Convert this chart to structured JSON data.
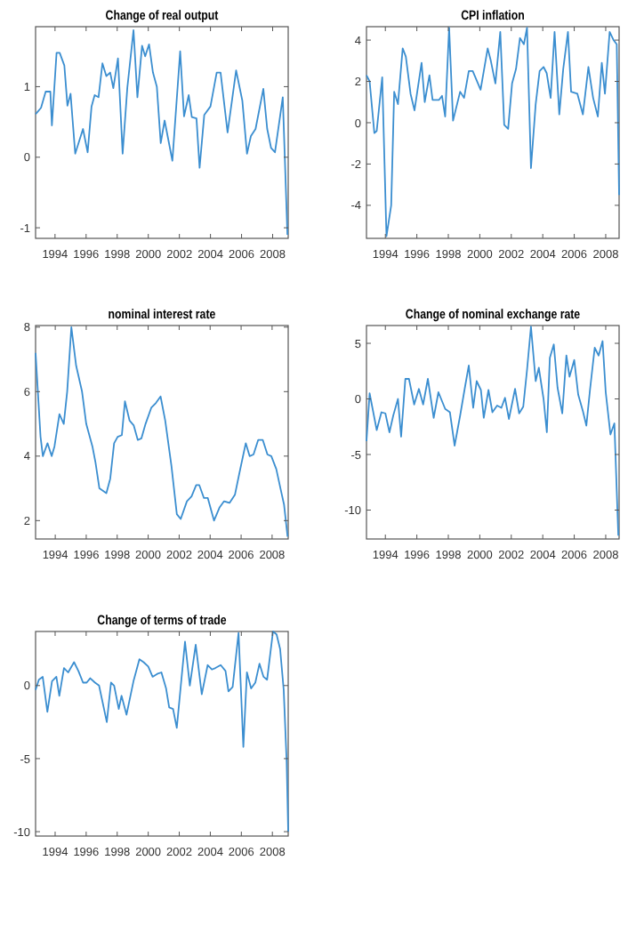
{
  "chart_data": [
    {
      "type": "line",
      "title": "Change of real output",
      "xlim": [
        1992.75,
        2009
      ],
      "ylim": [
        -1.15,
        1.85
      ],
      "xticks": [
        1994,
        1996,
        1998,
        2000,
        2002,
        2004,
        2006,
        2008
      ],
      "yticks": [
        -1,
        0,
        1
      ],
      "series": [
        {
          "color": "#3b8ed0",
          "x": [
            1992.75,
            1993.1,
            1993.4,
            1993.7,
            1993.8,
            1994.1,
            1994.3,
            1994.6,
            1994.8,
            1995.0,
            1995.3,
            1995.8,
            1996.1,
            1996.35,
            1996.55,
            1996.8,
            1997.05,
            1997.3,
            1997.55,
            1997.75,
            1998.05,
            1998.35,
            1998.65,
            1999.05,
            1999.3,
            1999.6,
            1999.8,
            2000.05,
            2000.3,
            2000.55,
            2000.8,
            2001.05,
            2001.55,
            2002.05,
            2002.3,
            2002.6,
            2002.8,
            2003.1,
            2003.3,
            2003.6,
            2004.0,
            2004.4,
            2004.65,
            2005.1,
            2005.65,
            2006.05,
            2006.35,
            2006.6,
            2006.9,
            2007.4,
            2007.65,
            2007.9,
            2008.15,
            2008.65,
            2008.95
          ],
          "values": [
            0.61,
            0.7,
            0.93,
            0.93,
            0.45,
            1.48,
            1.48,
            1.3,
            0.73,
            0.9,
            0.05,
            0.4,
            0.07,
            0.72,
            0.88,
            0.85,
            1.33,
            1.15,
            1.2,
            0.98,
            1.4,
            0.05,
            0.98,
            1.8,
            0.85,
            1.58,
            1.43,
            1.6,
            1.2,
            1.0,
            0.2,
            0.52,
            -0.05,
            1.5,
            0.58,
            0.88,
            0.57,
            0.55,
            -0.15,
            0.6,
            0.72,
            1.2,
            1.2,
            0.35,
            1.23,
            0.8,
            0.05,
            0.3,
            0.4,
            0.97,
            0.4,
            0.13,
            0.07,
            0.85,
            -1.1
          ]
        }
      ]
    },
    {
      "type": "line",
      "title": "CPI inflation",
      "xlim": [
        1992.8,
        2008.85
      ],
      "ylim": [
        -5.6,
        4.65
      ],
      "xticks": [
        1994,
        1996,
        1998,
        2000,
        2002,
        2004,
        2006,
        2008
      ],
      "yticks": [
        -4,
        -2,
        0,
        2,
        4
      ],
      "series": [
        {
          "color": "#3b8ed0",
          "x": [
            1992.8,
            1993.0,
            1993.3,
            1993.45,
            1993.8,
            1994.07,
            1994.37,
            1994.56,
            1994.8,
            1995.1,
            1995.3,
            1995.6,
            1995.85,
            1996.3,
            1996.5,
            1996.8,
            1997.0,
            1997.4,
            1997.6,
            1997.8,
            1998.05,
            1998.3,
            1998.75,
            1999.0,
            1999.3,
            1999.55,
            2000.05,
            2000.5,
            2000.7,
            2000.99,
            2001.3,
            2001.55,
            2001.8,
            2002.05,
            2002.3,
            2002.55,
            2002.8,
            2003.0,
            2003.25,
            2003.55,
            2003.8,
            2004.05,
            2004.25,
            2004.5,
            2004.75,
            2005.05,
            2005.3,
            2005.6,
            2005.8,
            2006.2,
            2006.55,
            2006.9,
            2007.2,
            2007.5,
            2007.75,
            2007.95,
            2008.25,
            2008.5,
            2008.7,
            2008.85
          ],
          "values": [
            2.3,
            2.0,
            -0.5,
            -0.4,
            2.2,
            -5.5,
            -4.0,
            1.5,
            0.9,
            3.6,
            3.2,
            1.4,
            0.6,
            2.9,
            1.0,
            2.3,
            1.1,
            1.1,
            1.3,
            0.3,
            4.6,
            0.1,
            1.5,
            1.2,
            2.5,
            2.5,
            1.6,
            3.6,
            3.0,
            1.9,
            4.4,
            -0.1,
            -0.3,
            1.9,
            2.6,
            4.1,
            3.8,
            4.6,
            -2.2,
            0.9,
            2.5,
            2.7,
            2.4,
            1.2,
            4.4,
            0.4,
            2.6,
            4.4,
            1.5,
            1.4,
            0.4,
            2.7,
            1.2,
            0.3,
            2.9,
            1.4,
            4.4,
            4.0,
            3.8,
            -3.5
          ]
        }
      ]
    },
    {
      "type": "line",
      "title": "nominal interest rate",
      "xlim": [
        1992.73,
        2009.04
      ],
      "ylim": [
        1.43,
        8.05
      ],
      "xticks": [
        1994,
        1996,
        1998,
        2000,
        2002,
        2004,
        2006,
        2008
      ],
      "yticks": [
        2,
        4,
        6,
        8
      ],
      "series": [
        {
          "color": "#3b8ed0",
          "x": [
            1992.73,
            1993.05,
            1993.2,
            1993.5,
            1993.77,
            1993.95,
            1994.27,
            1994.55,
            1994.77,
            1995.04,
            1995.35,
            1995.73,
            1996.0,
            1996.4,
            1996.6,
            1996.85,
            1997.3,
            1997.55,
            1997.8,
            1998.03,
            1998.3,
            1998.5,
            1998.8,
            1999.07,
            1999.33,
            1999.56,
            1999.83,
            2000.2,
            2000.5,
            2000.8,
            2001.1,
            2001.5,
            2001.85,
            2002.1,
            2002.5,
            2002.8,
            2003.1,
            2003.3,
            2003.6,
            2003.85,
            2004.25,
            2004.6,
            2004.9,
            2005.25,
            2005.6,
            2005.9,
            2006.3,
            2006.55,
            2006.8,
            2007.1,
            2007.4,
            2007.7,
            2007.95,
            2008.27,
            2008.54,
            2008.77,
            2009.0
          ],
          "values": [
            7.2,
            4.6,
            4.0,
            4.4,
            4.0,
            4.3,
            5.3,
            5.0,
            6.0,
            8.0,
            6.8,
            6.0,
            5.0,
            4.3,
            3.8,
            3.0,
            2.85,
            3.3,
            4.4,
            4.6,
            4.65,
            5.7,
            5.1,
            4.95,
            4.5,
            4.55,
            5.0,
            5.5,
            5.65,
            5.85,
            5.1,
            3.7,
            2.2,
            2.05,
            2.6,
            2.75,
            3.1,
            3.1,
            2.7,
            2.7,
            2.0,
            2.4,
            2.6,
            2.55,
            2.8,
            3.5,
            4.4,
            4.0,
            4.05,
            4.5,
            4.5,
            4.05,
            4.0,
            3.6,
            3.0,
            2.5,
            1.5
          ]
        }
      ]
    },
    {
      "type": "line",
      "title": "Change of nominal exchange rate",
      "xlim": [
        1992.8,
        2008.85
      ],
      "ylim": [
        -12.6,
        6.6
      ],
      "xticks": [
        1994,
        1996,
        1998,
        2000,
        2002,
        2004,
        2006,
        2008
      ],
      "yticks": [
        -10,
        -5,
        0,
        5
      ],
      "series": [
        {
          "color": "#3b8ed0",
          "x": [
            1992.8,
            1993.0,
            1993.45,
            1993.75,
            1994.0,
            1994.26,
            1994.5,
            1994.8,
            1995.0,
            1995.27,
            1995.5,
            1995.83,
            1996.13,
            1996.4,
            1996.7,
            1997.07,
            1997.37,
            1997.8,
            1998.1,
            1998.4,
            1998.75,
            1999.05,
            1999.3,
            1999.58,
            1999.8,
            2000.07,
            2000.25,
            2000.55,
            2000.8,
            2001.1,
            2001.37,
            2001.6,
            2001.85,
            2002.24,
            2002.5,
            2002.76,
            2003.0,
            2003.25,
            2003.55,
            2003.75,
            2004.05,
            2004.26,
            2004.45,
            2004.7,
            2004.94,
            2005.24,
            2005.5,
            2005.7,
            2006.0,
            2006.25,
            2006.55,
            2006.77,
            2007.0,
            2007.3,
            2007.55,
            2007.8,
            2008.0,
            2008.3,
            2008.55,
            2008.8
          ],
          "values": [
            -3.8,
            0.5,
            -2.8,
            -1.2,
            -1.3,
            -3.0,
            -1.5,
            0.0,
            -3.4,
            1.8,
            1.8,
            -0.5,
            0.9,
            -0.5,
            1.8,
            -1.7,
            0.6,
            -0.9,
            -1.2,
            -4.2,
            -1.5,
            1.0,
            3.0,
            -0.8,
            1.6,
            0.8,
            -1.7,
            0.8,
            -1.2,
            -0.6,
            -0.8,
            0.1,
            -1.8,
            0.9,
            -1.3,
            -0.7,
            2.6,
            6.5,
            1.6,
            2.8,
            0.0,
            -3.0,
            3.7,
            4.9,
            1.0,
            -1.3,
            3.9,
            2.0,
            3.5,
            0.4,
            -1.1,
            -2.4,
            0.8,
            4.6,
            3.9,
            5.2,
            0.6,
            -3.2,
            -2.2,
            -12.3
          ]
        }
      ]
    },
    {
      "type": "line",
      "title": "Change of terms of trade",
      "xlim": [
        1992.74,
        2009.02
      ],
      "ylim": [
        -10.3,
        3.7
      ],
      "xticks": [
        1994,
        1996,
        1998,
        2000,
        2002,
        2004,
        2006,
        2008
      ],
      "yticks": [
        -10,
        -5,
        0
      ],
      "series": [
        {
          "color": "#3b8ed0",
          "x": [
            1992.74,
            1992.95,
            1993.2,
            1993.5,
            1993.8,
            1994.08,
            1994.27,
            1994.57,
            1994.84,
            1995.22,
            1995.5,
            1995.8,
            1996.03,
            1996.26,
            1996.57,
            1996.83,
            1997.33,
            1997.6,
            1997.8,
            1998.1,
            1998.28,
            1998.6,
            1999.05,
            1999.43,
            1999.7,
            2000.0,
            2000.28,
            2000.58,
            2000.85,
            2001.15,
            2001.35,
            2001.6,
            2001.84,
            2002.1,
            2002.37,
            2002.68,
            2003.06,
            2003.45,
            2003.83,
            2004.1,
            2004.33,
            2004.67,
            2004.98,
            2005.17,
            2005.44,
            2005.82,
            2006.13,
            2006.36,
            2006.63,
            2006.9,
            2007.17,
            2007.43,
            2007.66,
            2008.04,
            2008.27,
            2008.5,
            2008.73,
            2008.92,
            2009.02
          ],
          "values": [
            -0.3,
            0.4,
            0.6,
            -1.8,
            0.3,
            0.6,
            -0.7,
            1.2,
            0.9,
            1.6,
            1.0,
            0.2,
            0.2,
            0.5,
            0.2,
            0.0,
            -2.5,
            0.2,
            0.0,
            -1.6,
            -0.7,
            -2.0,
            0.3,
            1.8,
            1.6,
            1.3,
            0.6,
            0.8,
            0.9,
            -0.2,
            -1.5,
            -1.6,
            -2.9,
            0.0,
            3.0,
            0.0,
            2.8,
            -0.6,
            1.4,
            1.1,
            1.2,
            1.4,
            1.0,
            -0.4,
            -0.1,
            3.6,
            -4.2,
            0.9,
            -0.2,
            0.2,
            1.5,
            0.6,
            0.4,
            3.7,
            3.5,
            2.5,
            -0.3,
            -5.2,
            -10.0
          ]
        }
      ]
    }
  ]
}
